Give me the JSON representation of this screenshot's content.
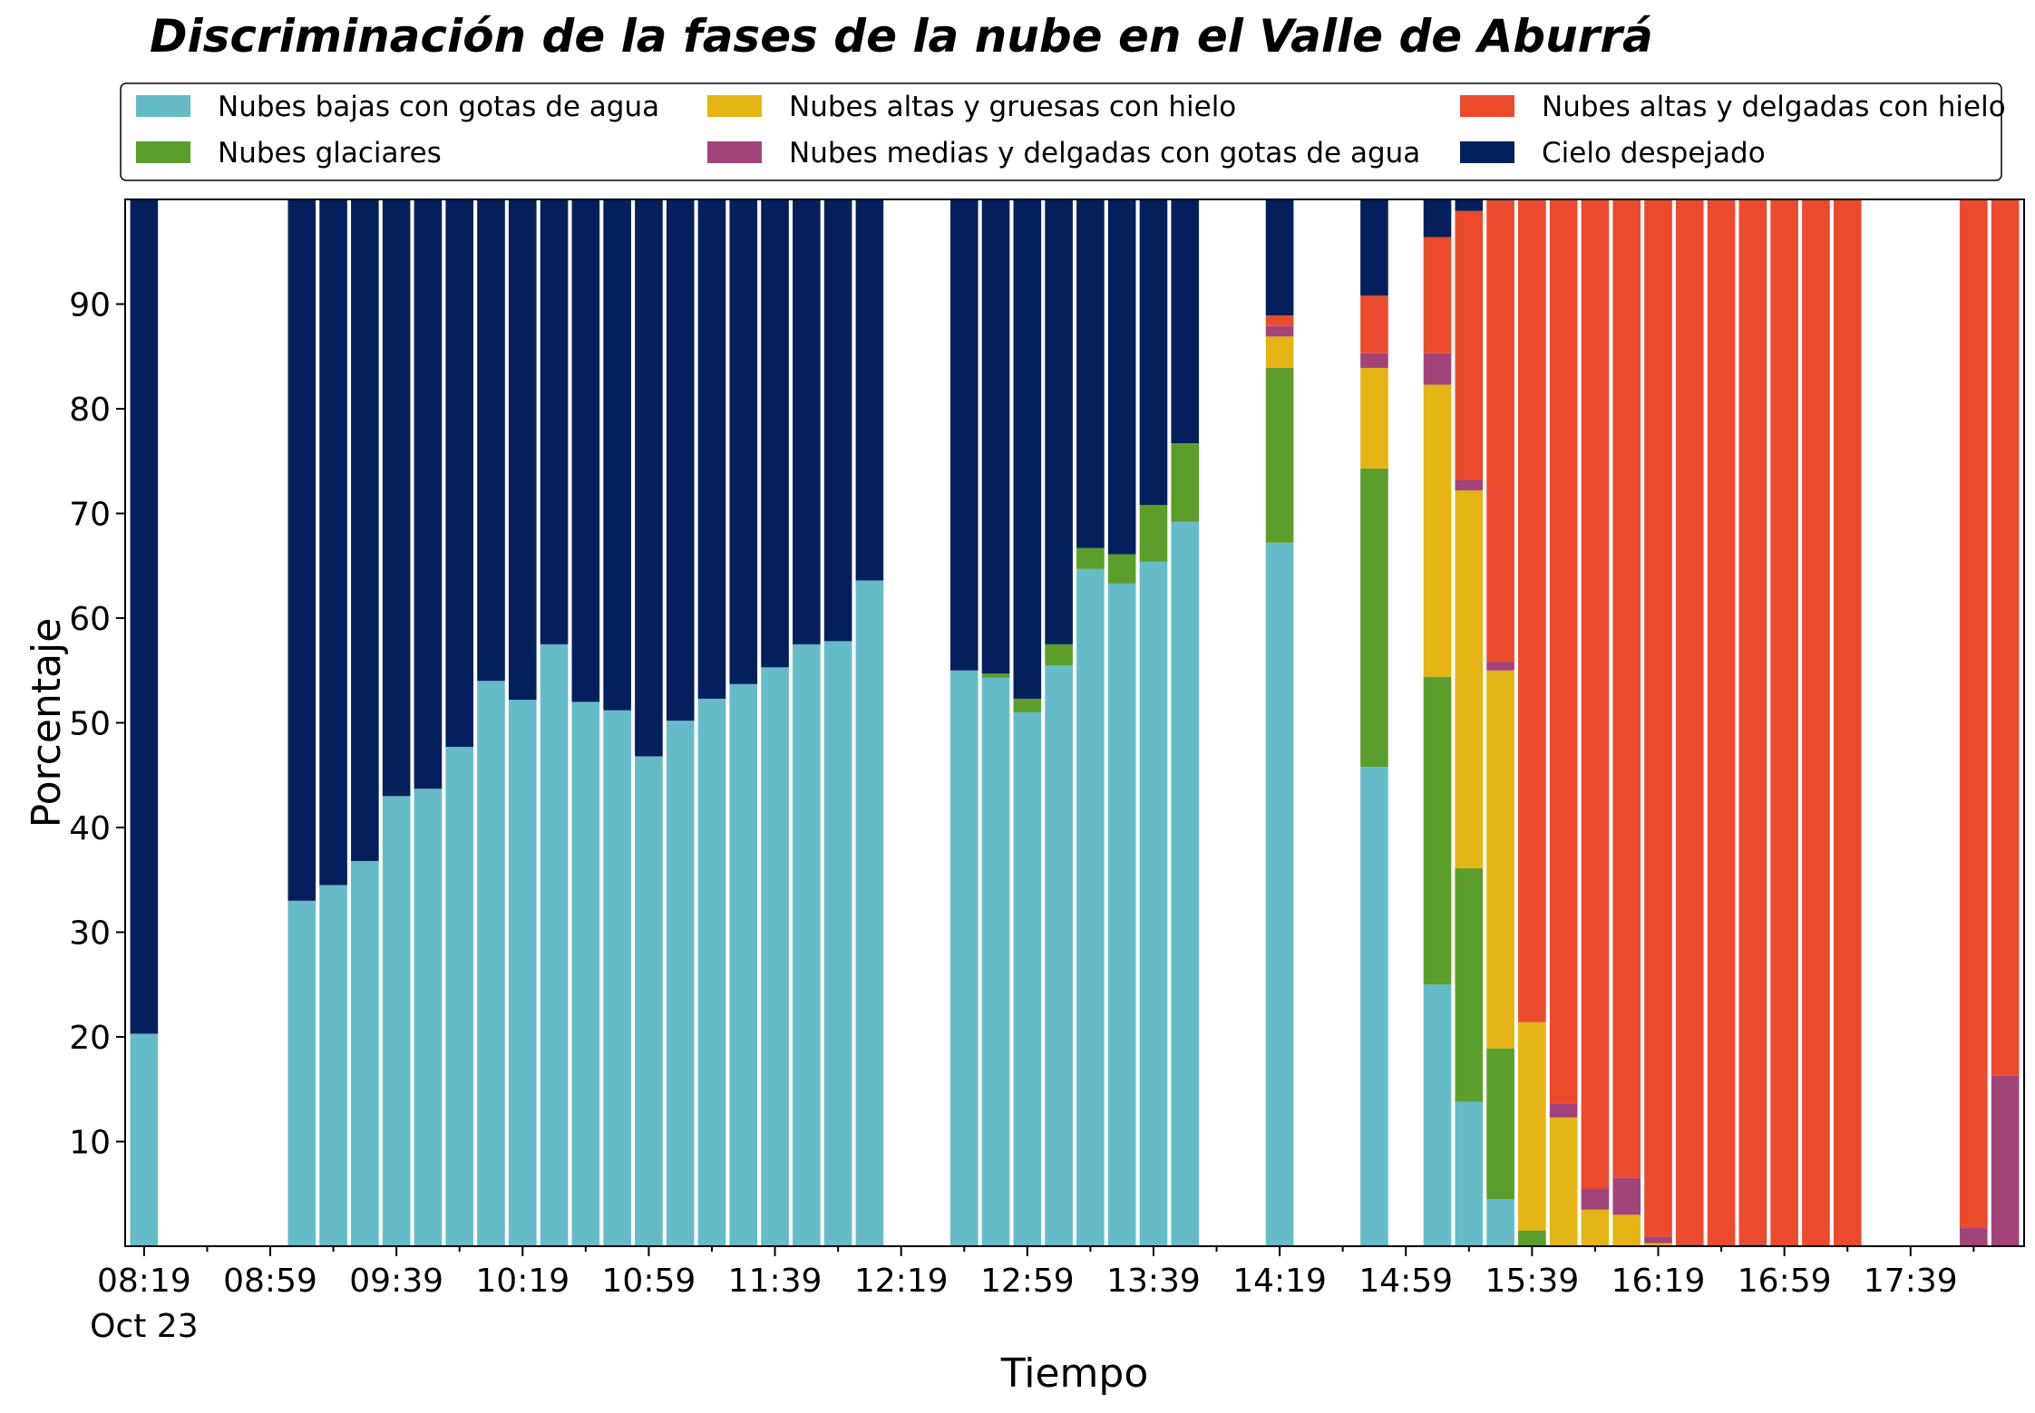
{
  "chart_data": {
    "type": "bar",
    "stacked": true,
    "title": "Discriminación de la fases de la nube en el Valle de Aburrá",
    "xlabel": "Tiempo",
    "ylabel": "Porcentaje",
    "ylim": [
      0,
      100
    ],
    "yticks": [
      10,
      20,
      30,
      40,
      50,
      60,
      70,
      80,
      90
    ],
    "xticks": [
      {
        "label": "08:19",
        "sublabel": "Oct 23",
        "slot": 0
      },
      {
        "label": "08:59",
        "slot": 4
      },
      {
        "label": "09:39",
        "slot": 8
      },
      {
        "label": "10:19",
        "slot": 12
      },
      {
        "label": "10:59",
        "slot": 16
      },
      {
        "label": "11:39",
        "slot": 20
      },
      {
        "label": "12:19",
        "slot": 24
      },
      {
        "label": "12:59",
        "slot": 28
      },
      {
        "label": "13:39",
        "slot": 32
      },
      {
        "label": "14:19",
        "slot": 36
      },
      {
        "label": "14:59",
        "slot": 40
      },
      {
        "label": "15:39",
        "slot": 44
      },
      {
        "label": "16:19",
        "slot": 48
      },
      {
        "label": "16:59",
        "slot": 52
      },
      {
        "label": "17:39",
        "slot": 56
      }
    ],
    "interval_minutes": 10,
    "start_time": "08:19",
    "grid": false,
    "legend_position": "top",
    "series": [
      {
        "name": "Nubes bajas con gotas de agua",
        "color": "#66bbc8",
        "values": [
          20.3,
          null,
          null,
          null,
          null,
          33.0,
          34.5,
          36.8,
          43.0,
          43.7,
          47.7,
          54.0,
          52.2,
          57.5,
          52.0,
          51.2,
          46.8,
          50.2,
          52.3,
          53.7,
          55.3,
          57.5,
          57.8,
          63.6,
          null,
          null,
          55.0,
          54.3,
          51.0,
          55.5,
          64.7,
          63.3,
          65.4,
          69.2,
          null,
          null,
          67.2,
          null,
          null,
          45.8,
          null,
          25.0,
          13.8,
          4.5,
          0,
          0,
          0,
          0,
          0,
          0,
          0,
          0,
          0,
          0,
          0,
          null,
          null,
          null,
          0,
          0
        ]
      },
      {
        "name": "Nubes glaciares",
        "color": "#5b9e2b",
        "values": [
          0,
          null,
          null,
          null,
          null,
          0,
          0,
          0,
          0,
          0,
          0,
          0,
          0,
          0,
          0,
          0,
          0,
          0,
          0,
          0,
          0,
          0,
          0,
          0,
          null,
          null,
          0,
          0.4,
          1.3,
          2.0,
          2.0,
          2.8,
          5.4,
          7.5,
          null,
          null,
          16.7,
          null,
          null,
          28.5,
          null,
          29.4,
          22.3,
          14.4,
          1.5,
          0,
          0,
          0,
          0,
          0,
          0,
          0,
          0,
          0,
          0,
          null,
          null,
          null,
          0,
          0
        ]
      },
      {
        "name": "Nubes altas y gruesas con hielo",
        "color": "#e3b414",
        "values": [
          0,
          null,
          null,
          null,
          null,
          0,
          0,
          0,
          0,
          0,
          0,
          0,
          0,
          0,
          0,
          0,
          0,
          0,
          0,
          0,
          0,
          0,
          0,
          0,
          null,
          null,
          0,
          0,
          0,
          0,
          0,
          0,
          0,
          0,
          null,
          null,
          3.0,
          null,
          null,
          9.6,
          null,
          27.9,
          36.1,
          36.1,
          19.9,
          12.3,
          3.5,
          3.0,
          0.3,
          0,
          0,
          0,
          0,
          0,
          0,
          null,
          null,
          null,
          0,
          0
        ]
      },
      {
        "name": "Nubes medias y delgadas con gotas de agua",
        "color": "#a2447a",
        "values": [
          0,
          null,
          null,
          null,
          null,
          0,
          0,
          0,
          0,
          0,
          0,
          0,
          0,
          0,
          0,
          0,
          0,
          0,
          0,
          0,
          0,
          0,
          0,
          0,
          null,
          null,
          0,
          0,
          0,
          0,
          0,
          0,
          0,
          0,
          null,
          null,
          1.0,
          null,
          null,
          1.4,
          null,
          3.0,
          1.0,
          0.8,
          0,
          1.3,
          2.0,
          3.5,
          0.6,
          0.2,
          0,
          0.2,
          0,
          0,
          0,
          null,
          null,
          null,
          1.8,
          16.3
        ]
      },
      {
        "name": "Nubes altas y delgadas con hielo",
        "color": "#eb4a2c",
        "values": [
          0,
          null,
          null,
          null,
          null,
          0,
          0,
          0,
          0,
          0,
          0,
          0,
          0,
          0,
          0,
          0,
          0,
          0,
          0,
          0,
          0,
          0,
          0,
          0,
          null,
          null,
          0,
          0,
          0,
          0,
          0,
          0,
          0,
          0,
          null,
          null,
          1.0,
          null,
          null,
          5.5,
          null,
          11.1,
          25.7,
          44.1,
          78.6,
          86.4,
          94.5,
          93.5,
          99.1,
          99.8,
          100,
          99.8,
          100,
          100,
          100,
          null,
          null,
          null,
          98.2,
          83.7
        ]
      },
      {
        "name": "Cielo despejado",
        "color": "#03205d",
        "values": [
          79.7,
          null,
          null,
          null,
          null,
          67.0,
          65.5,
          63.2,
          57.0,
          56.3,
          52.3,
          46.0,
          47.8,
          42.5,
          48.0,
          48.8,
          53.2,
          49.8,
          47.7,
          46.3,
          44.7,
          42.5,
          42.2,
          36.4,
          null,
          null,
          45.0,
          45.3,
          47.7,
          42.5,
          33.3,
          33.9,
          29.2,
          23.3,
          null,
          null,
          11.1,
          null,
          null,
          9.2,
          null,
          3.6,
          1.1,
          0.1,
          0,
          0,
          0,
          0,
          0,
          0,
          0,
          0,
          0,
          0,
          0,
          null,
          null,
          null,
          0,
          0
        ]
      }
    ]
  }
}
